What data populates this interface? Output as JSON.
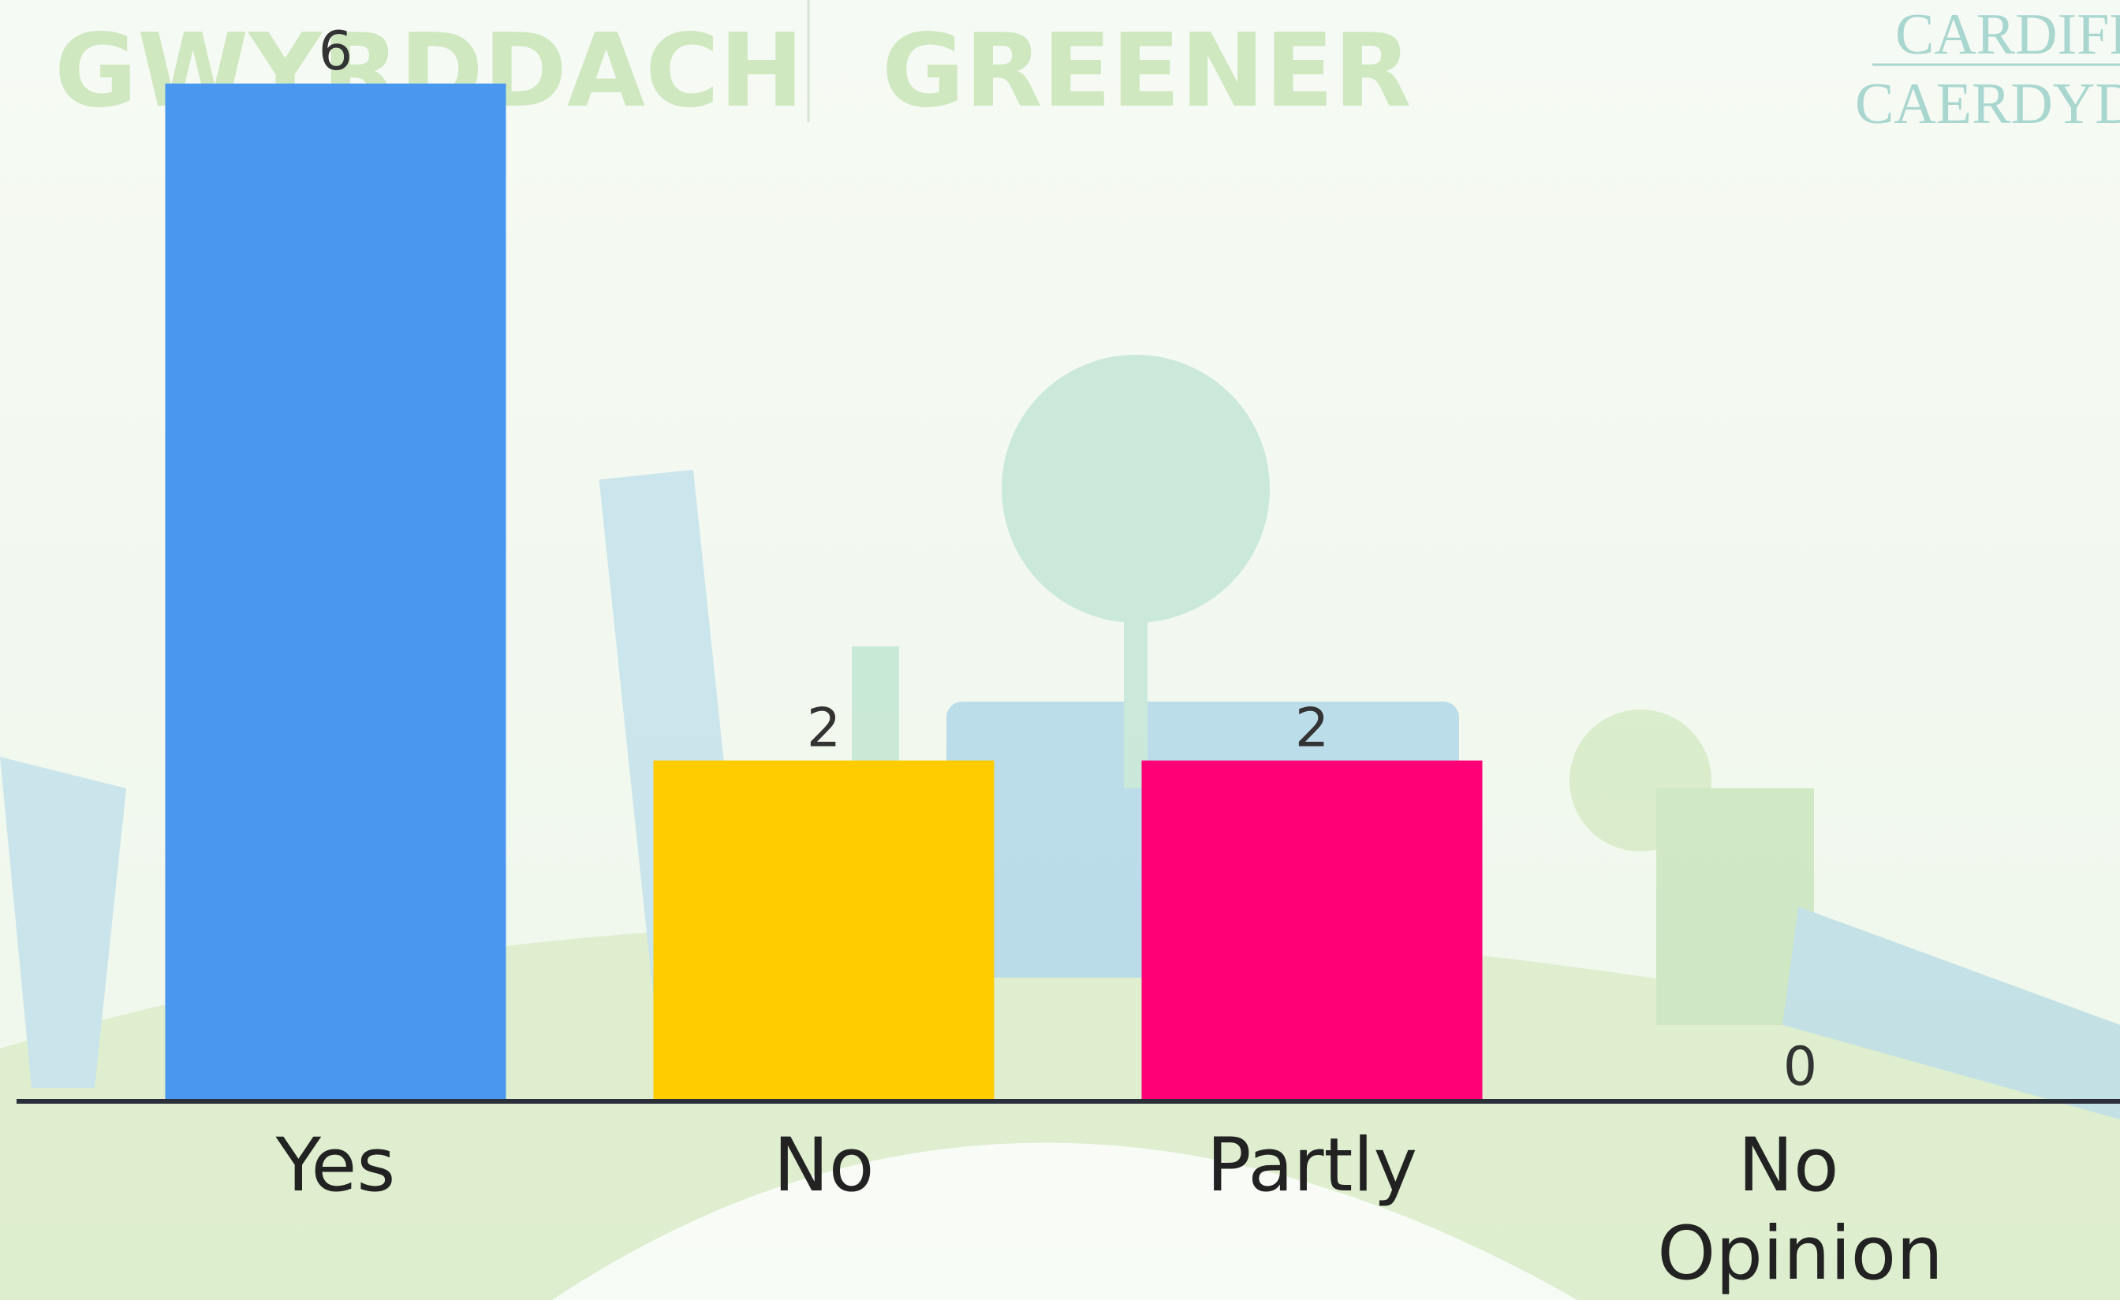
{
  "background": {
    "left_text": "GWYRDDACH",
    "middle_text": "GREENER",
    "right_top": "CARDIFF",
    "right_bottom": "CAERDYDD"
  },
  "chart_data": {
    "type": "bar",
    "categories": [
      "Yes",
      "No",
      "Partly",
      "No Opinion"
    ],
    "values": [
      6,
      2,
      2,
      0
    ],
    "colors": [
      "#4a97ef",
      "#ffcc00",
      "#ff0077",
      "#7e57c2"
    ]
  }
}
